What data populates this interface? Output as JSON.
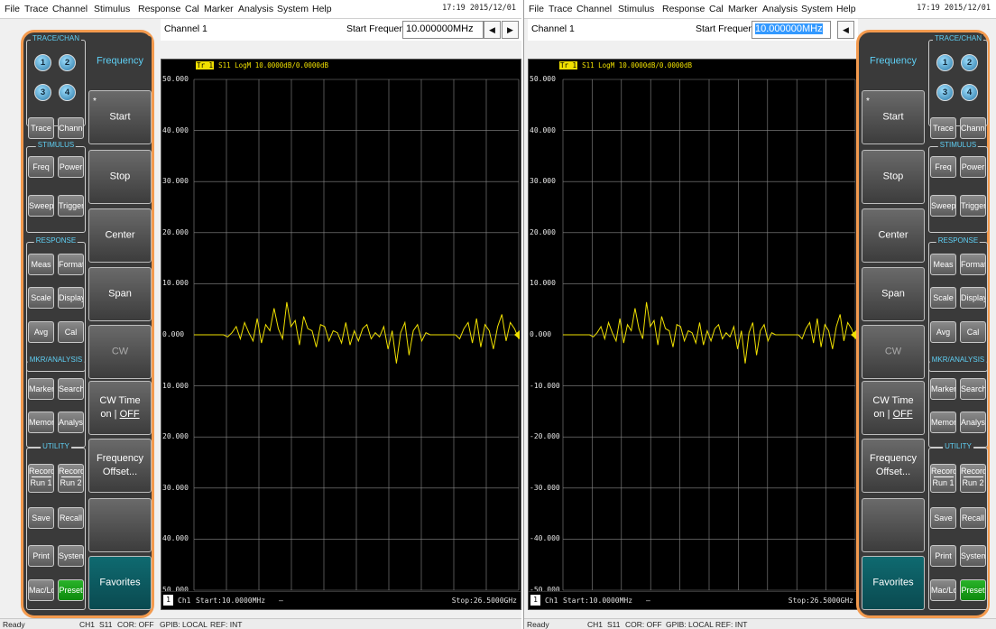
{
  "menu": [
    "File",
    "Trace",
    "Channel",
    "Stimulus",
    "Response",
    "Cal",
    "Marker",
    "Analysis",
    "System",
    "Help"
  ],
  "clock": "17:19 2015/12/01",
  "channel_title": "Channel 1",
  "entry_label": "Start Frequency",
  "entry_value": "10.000000MHz",
  "arrow_left": "◀",
  "arrow_right": "▶",
  "trace_tag": "Tr 1",
  "trace_info": "S11 LogM 10.0000dB/0.0000dB",
  "left_y_labels": [
    "50.000",
    "40.000",
    "30.000",
    "20.000",
    "10.000",
    "0.000",
    "10.000",
    "20.000",
    "30.000",
    "40.000",
    "50.000"
  ],
  "right_y_labels": [
    "50.000",
    "40.000",
    "30.000",
    "20.000",
    "10.000",
    "0.000",
    "-10.000",
    "-20.000",
    "-30.000",
    "-40.000",
    "-50.000"
  ],
  "bottom_ch": "1",
  "bottom_ch_label": "Ch1",
  "bottom_start": "Start:10.0000MHz",
  "bottom_dash": "—",
  "bottom_stop": "Stop:26.5000GHz",
  "status": {
    "ready": "Ready",
    "ch": "CH1",
    "param": "S11",
    "cor": "COR: OFF",
    "gpib": "GPIB: LOCAL",
    "ref": "REF: INT"
  },
  "groups": {
    "trace_chan": "TRACE/CHAN",
    "stimulus": "STIMULUS",
    "response": "RESPONSE",
    "mkr": "MKR/ANALYSIS",
    "utility": "UTILITY"
  },
  "circles": [
    "1",
    "2",
    "3",
    "4"
  ],
  "keys": {
    "trace": "Trace",
    "channel": "Channel",
    "freq": "Freq",
    "power": "Power",
    "sweep": "Sweep",
    "trigger": "Trigger",
    "meas": "Meas",
    "format": "Format",
    "scale": "Scale",
    "display": "Display",
    "avg": "Avg",
    "cal": "Cal",
    "marker": "Marker",
    "search": "Search",
    "memory": "Memory",
    "analysis": "Analysis",
    "record1_top": "Record",
    "record1_bot": "Run 1",
    "record2_top": "Record",
    "record2_bot": "Run 2",
    "save": "Save",
    "recall": "Recall",
    "print": "Print",
    "system": "System",
    "macloc": "Mac/Loc",
    "preset": "Preset"
  },
  "softkeys": {
    "header": "Frequency",
    "star": "*",
    "start": "Start",
    "stop": "Stop",
    "center": "Center",
    "span": "Span",
    "cw": "CW",
    "cw_time": "CW Time",
    "cw_on": "on |",
    "cw_off": "OFF",
    "freq_offset_1": "Frequency",
    "freq_offset_2": "Offset...",
    "blank": "",
    "favorites": "Favorites"
  },
  "colors": {
    "trace": "#f0e000",
    "accent": "#f39a4e",
    "panel": "#3a3a3a",
    "grid": "#8a8a8a"
  },
  "trace_y": [
    0,
    0,
    0,
    0,
    0,
    0,
    0,
    0,
    -0.1,
    0.1,
    0.4,
    -0.2,
    0.6,
    0.1,
    -0.3,
    0.8,
    -0.4,
    0.5,
    0.2,
    1.3,
    0.3,
    -0.2,
    1.6,
    0.4,
    0.7,
    -0.5,
    0.9,
    0.3,
    0.2,
    -0.6,
    0.5,
    0.4,
    -0.3,
    0.2,
    0.1,
    -0.4,
    0.6,
    -0.5,
    0.2,
    -0.3,
    0.3,
    0.5,
    -0.2,
    0.1,
    -0.1,
    0.4,
    -0.7,
    0.2,
    -1.4,
    0.1,
    0.6,
    -1.0,
    0.2,
    0.5,
    -0.3,
    0.1,
    0,
    0,
    0,
    0,
    0,
    0,
    0,
    -0.2,
    0.3,
    0.6,
    -0.4,
    0.8,
    -0.6,
    0.5,
    0.2,
    -0.7,
    0.4,
    1.0,
    -0.3,
    0.6,
    0.3,
    -0.2
  ]
}
